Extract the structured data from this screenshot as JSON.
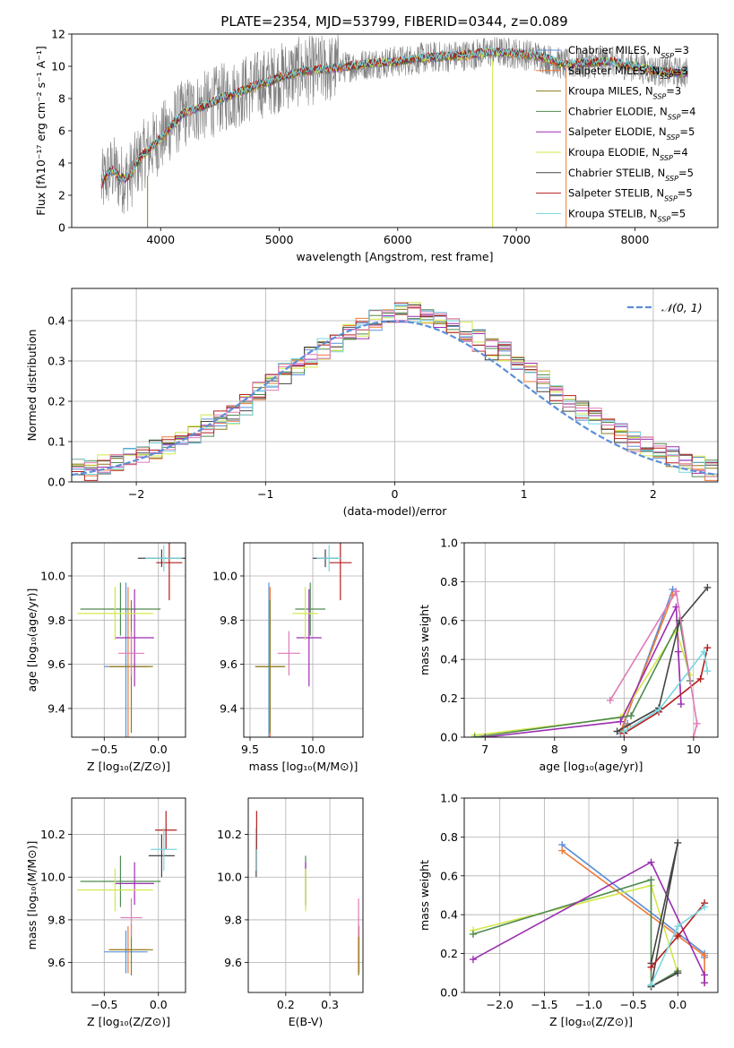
{
  "figure_title": "PLATE=2354, MJD=53799, FIBERID=0344, z=0.089",
  "colors": {
    "data": "#808080",
    "chabrier_miles": "#5b8fd6",
    "salpeter_miles": "#ef7a37",
    "kroupa_miles": "#8a7d1e",
    "chabrier_elodie": "#4f8a4f",
    "salpeter_elodie": "#9b2fb0",
    "kroupa_elodie": "#d2e84a",
    "chabrier_stelib": "#444444",
    "salpeter_stelib": "#b41e1e",
    "kroupa_stelib": "#77d7e0",
    "pink": "#e07ab8",
    "normal": "#5b8fd6"
  },
  "chart_data": [
    {
      "id": "spectrum",
      "type": "line",
      "title": "PLATE=2354, MJD=53799, FIBERID=0344, z=0.089",
      "xlabel": "wavelength [Angstrom, rest frame]",
      "ylabel": "Flux [fλ10⁻¹⁷ erg cm⁻² s⁻¹ A⁻¹]",
      "xlim": [
        3250,
        8700
      ],
      "ylim": [
        0,
        12
      ],
      "xticks": [
        4000,
        5000,
        6000,
        7000,
        8000
      ],
      "yticks": [
        0,
        2,
        4,
        6,
        8,
        10,
        12
      ],
      "legend_position": "top-right",
      "legend": [
        "Chabrier MILES, N_SSP=3",
        "Salpeter MILES, N_SSP=3",
        "Kroupa MILES, N_SSP=3",
        "Chabrier ELODIE, N_SSP=4",
        "Salpeter ELODIE, N_SSP=5",
        "Kroupa ELODIE, N_SSP=4",
        "Chabrier STELIB, N_SSP=5",
        "Salpeter STELIB, N_SSP=5",
        "Kroupa STELIB, N_SSP=5"
      ],
      "model_curve": {
        "x": [
          3500,
          3550,
          3600,
          3650,
          3700,
          3750,
          3800,
          3850,
          3900,
          3950,
          4000,
          4100,
          4200,
          4300,
          4400,
          4500,
          4600,
          4700,
          4800,
          4900,
          5000,
          5200,
          5400,
          5600,
          5800,
          6000,
          6200,
          6400,
          6600,
          6800,
          7000,
          7200,
          7400,
          7600,
          7800,
          8000,
          8200,
          8400
        ],
        "y": [
          2.6,
          3.3,
          3.6,
          3.1,
          3.0,
          3.3,
          4.0,
          4.5,
          4.8,
          5.2,
          5.5,
          6.4,
          7.1,
          7.4,
          7.6,
          8.0,
          8.2,
          8.5,
          8.8,
          9.0,
          9.3,
          9.7,
          9.8,
          10.0,
          10.2,
          10.3,
          10.5,
          10.6,
          10.7,
          10.9,
          10.8,
          10.6,
          10.1,
          10.2,
          10.3,
          10.0,
          9.7,
          9.6
        ]
      },
      "data_noise_amplitude": 2.2
    },
    {
      "id": "residuals",
      "type": "bar",
      "xlabel": "(data-model)/error",
      "ylabel": "Normed distribution",
      "xlim": [
        -2.5,
        2.5
      ],
      "ylim": [
        0,
        0.48
      ],
      "xticks": [
        -2,
        -1,
        0,
        1,
        2
      ],
      "yticks": [
        0.0,
        0.1,
        0.2,
        0.3,
        0.4
      ],
      "legend_position": "top-right",
      "legend": [
        "𝒩(0, 1)"
      ],
      "bin_width": 0.1,
      "bin_start": -2.5,
      "series_values": [
        0.03,
        0.03,
        0.04,
        0.05,
        0.06,
        0.07,
        0.08,
        0.09,
        0.11,
        0.12,
        0.14,
        0.15,
        0.17,
        0.19,
        0.22,
        0.24,
        0.27,
        0.29,
        0.31,
        0.33,
        0.35,
        0.37,
        0.38,
        0.4,
        0.41,
        0.42,
        0.42,
        0.41,
        0.4,
        0.38,
        0.37,
        0.35,
        0.33,
        0.32,
        0.29,
        0.27,
        0.25,
        0.22,
        0.2,
        0.18,
        0.16,
        0.14,
        0.12,
        0.1,
        0.09,
        0.07,
        0.06,
        0.05,
        0.04,
        0.03
      ]
    },
    {
      "id": "age_vs_Z",
      "type": "scatter",
      "xlabel": "Z [log₁₀(Z/Z⊙)]",
      "ylabel": "age  [log₁₀(age/yr)]",
      "xlim": [
        -0.8,
        0.25
      ],
      "ylim": [
        9.27,
        10.15
      ],
      "xticks": [
        -0.5,
        0.0
      ],
      "yticks": [
        9.4,
        9.6,
        9.8,
        10.0
      ],
      "points": [
        {
          "x": -0.3,
          "y": 9.59,
          "xerr": 0.2,
          "yerr": 0.38,
          "color": "chabrier_miles"
        },
        {
          "x": -0.28,
          "y": 9.59,
          "xerr": 0.18,
          "yerr": 0.36,
          "color": "salpeter_miles"
        },
        {
          "x": -0.25,
          "y": 9.59,
          "xerr": 0.2,
          "yerr": 0.3,
          "color": "kroupa_miles"
        },
        {
          "x": -0.35,
          "y": 9.85,
          "xerr": 0.37,
          "yerr": 0.12,
          "color": "chabrier_elodie"
        },
        {
          "x": -0.22,
          "y": 9.72,
          "xerr": 0.18,
          "yerr": 0.22,
          "color": "salpeter_elodie"
        },
        {
          "x": -0.4,
          "y": 9.83,
          "xerr": 0.35,
          "yerr": 0.12,
          "color": "kroupa_elodie"
        },
        {
          "x": 0.03,
          "y": 10.08,
          "xerr": 0.22,
          "yerr": 0.04,
          "color": "chabrier_stelib"
        },
        {
          "x": 0.1,
          "y": 10.06,
          "xerr": 0.12,
          "yerr": 0.17,
          "color": "salpeter_stelib"
        },
        {
          "x": 0.05,
          "y": 10.08,
          "xerr": 0.17,
          "yerr": 0.06,
          "color": "kroupa_stelib"
        },
        {
          "x": -0.25,
          "y": 9.65,
          "xerr": 0.12,
          "yerr": 0.1,
          "color": "pink"
        }
      ]
    },
    {
      "id": "age_vs_mass",
      "type": "scatter",
      "xlabel": "mass [log₁₀(M/M⊙)]",
      "ylabel": "",
      "xlim": [
        9.45,
        10.4
      ],
      "ylim": [
        9.27,
        10.15
      ],
      "xticks": [
        9.5,
        10.0
      ],
      "yticks": [
        9.4,
        9.6,
        9.8,
        10.0
      ],
      "points": [
        {
          "x": 9.65,
          "y": 9.59,
          "xerr": 0.1,
          "yerr": 0.38,
          "color": "chabrier_miles"
        },
        {
          "x": 9.66,
          "y": 9.59,
          "xerr": 0.11,
          "yerr": 0.36,
          "color": "salpeter_miles"
        },
        {
          "x": 9.66,
          "y": 9.59,
          "xerr": 0.12,
          "yerr": 0.3,
          "color": "kroupa_miles"
        },
        {
          "x": 9.98,
          "y": 9.85,
          "xerr": 0.12,
          "yerr": 0.12,
          "color": "chabrier_elodie"
        },
        {
          "x": 9.97,
          "y": 9.72,
          "xerr": 0.1,
          "yerr": 0.22,
          "color": "salpeter_elodie"
        },
        {
          "x": 9.94,
          "y": 9.83,
          "xerr": 0.1,
          "yerr": 0.12,
          "color": "kroupa_elodie"
        },
        {
          "x": 10.1,
          "y": 10.08,
          "xerr": 0.1,
          "yerr": 0.04,
          "color": "chabrier_stelib"
        },
        {
          "x": 10.22,
          "y": 10.06,
          "xerr": 0.09,
          "yerr": 0.17,
          "color": "salpeter_stelib"
        },
        {
          "x": 10.13,
          "y": 10.08,
          "xerr": 0.1,
          "yerr": 0.06,
          "color": "kroupa_stelib"
        },
        {
          "x": 9.81,
          "y": 9.65,
          "xerr": 0.09,
          "yerr": 0.1,
          "color": "pink"
        }
      ]
    },
    {
      "id": "weight_vs_age",
      "type": "line",
      "xlabel": "age  [log₁₀(age/yr)]",
      "ylabel": "mass weight",
      "xlim": [
        6.7,
        10.35
      ],
      "ylim": [
        0,
        1.0
      ],
      "xticks": [
        7,
        8,
        9,
        10
      ],
      "yticks": [
        0.0,
        0.2,
        0.4,
        0.6,
        0.8,
        1.0
      ],
      "series": [
        {
          "color": "chabrier_miles",
          "x": [
            9.05,
            8.95,
            9.7
          ],
          "y": [
            0.07,
            0.02,
            0.76
          ]
        },
        {
          "color": "salpeter_miles",
          "x": [
            9.05,
            8.95,
            9.7
          ],
          "y": [
            0.06,
            0.03,
            0.73
          ]
        },
        {
          "color": "kroupa_elodie",
          "x": [
            6.85,
            8.95,
            9.75,
            9.95
          ],
          "y": [
            0.01,
            0.1,
            0.55,
            0.32
          ]
        },
        {
          "color": "chabrier_elodie",
          "x": [
            6.85,
            9.1,
            9.8,
            9.95
          ],
          "y": [
            0.0,
            0.11,
            0.6,
            0.29
          ]
        },
        {
          "color": "salpeter_elodie",
          "x": [
            7.0,
            8.95,
            9.75,
            9.82,
            9.78
          ],
          "y": [
            0.0,
            0.08,
            0.67,
            0.17,
            0.44
          ]
        },
        {
          "color": "chabrier_stelib",
          "x": [
            8.9,
            9.5,
            9.8,
            10.2
          ],
          "y": [
            0.03,
            0.15,
            0.6,
            0.77
          ]
        },
        {
          "color": "salpeter_stelib",
          "x": [
            9.0,
            9.5,
            10.1,
            10.2
          ],
          "y": [
            0.02,
            0.13,
            0.3,
            0.46
          ]
        },
        {
          "color": "kroupa_stelib",
          "x": [
            9.0,
            9.5,
            10.15,
            10.2
          ],
          "y": [
            0.03,
            0.14,
            0.44,
            0.34
          ]
        },
        {
          "color": "pink",
          "x": [
            8.8,
            9.75,
            10.05,
            10.0
          ],
          "y": [
            0.19,
            0.75,
            0.07,
            0.0
          ]
        }
      ]
    },
    {
      "id": "mass_vs_Z",
      "type": "scatter",
      "xlabel": "Z [log₁₀(Z/Z⊙)]",
      "ylabel": "mass [log₁₀(M/M⊙)]",
      "xlim": [
        -0.8,
        0.25
      ],
      "ylim": [
        9.46,
        10.37
      ],
      "xticks": [
        -0.5,
        0.0
      ],
      "yticks": [
        9.6,
        9.8,
        10.0,
        10.2
      ],
      "points": [
        {
          "x": -0.3,
          "y": 9.65,
          "xerr": 0.2,
          "yerr": 0.1,
          "color": "chabrier_miles"
        },
        {
          "x": -0.28,
          "y": 9.66,
          "xerr": 0.18,
          "yerr": 0.11,
          "color": "salpeter_miles"
        },
        {
          "x": -0.25,
          "y": 9.66,
          "xerr": 0.2,
          "yerr": 0.12,
          "color": "kroupa_miles"
        },
        {
          "x": -0.35,
          "y": 9.98,
          "xerr": 0.37,
          "yerr": 0.12,
          "color": "chabrier_elodie"
        },
        {
          "x": -0.22,
          "y": 9.97,
          "xerr": 0.18,
          "yerr": 0.1,
          "color": "salpeter_elodie"
        },
        {
          "x": -0.4,
          "y": 9.94,
          "xerr": 0.35,
          "yerr": 0.1,
          "color": "kroupa_elodie"
        },
        {
          "x": 0.03,
          "y": 10.1,
          "xerr": 0.12,
          "yerr": 0.1,
          "color": "chabrier_stelib"
        },
        {
          "x": 0.07,
          "y": 10.22,
          "xerr": 0.1,
          "yerr": 0.09,
          "color": "salpeter_stelib"
        },
        {
          "x": 0.05,
          "y": 10.13,
          "xerr": 0.12,
          "yerr": 0.1,
          "color": "kroupa_stelib"
        },
        {
          "x": -0.25,
          "y": 9.81,
          "xerr": 0.1,
          "yerr": 0.09,
          "color": "pink"
        }
      ]
    },
    {
      "id": "mass_vs_ebv",
      "type": "scatter",
      "xlabel": "E(B-V)",
      "ylabel": "",
      "xlim": [
        0.115,
        0.375
      ],
      "ylim": [
        9.46,
        10.37
      ],
      "xticks": [
        0.2,
        0.3
      ],
      "yticks": [
        9.6,
        9.8,
        10.0,
        10.2
      ],
      "points": [
        {
          "x": 0.365,
          "y": 9.65,
          "yerr": 0.1,
          "color": "chabrier_miles"
        },
        {
          "x": 0.366,
          "y": 9.66,
          "yerr": 0.11,
          "color": "salpeter_miles"
        },
        {
          "x": 0.365,
          "y": 9.66,
          "yerr": 0.12,
          "color": "kroupa_miles"
        },
        {
          "x": 0.245,
          "y": 9.98,
          "yerr": 0.12,
          "color": "chabrier_elodie"
        },
        {
          "x": 0.245,
          "y": 9.97,
          "yerr": 0.1,
          "color": "salpeter_elodie"
        },
        {
          "x": 0.245,
          "y": 9.94,
          "yerr": 0.1,
          "color": "kroupa_elodie"
        },
        {
          "x": 0.133,
          "y": 10.1,
          "yerr": 0.1,
          "color": "chabrier_stelib"
        },
        {
          "x": 0.134,
          "y": 10.22,
          "yerr": 0.09,
          "color": "salpeter_stelib"
        },
        {
          "x": 0.132,
          "y": 10.13,
          "yerr": 0.1,
          "color": "kroupa_stelib"
        },
        {
          "x": 0.365,
          "y": 9.81,
          "yerr": 0.09,
          "color": "pink"
        }
      ]
    },
    {
      "id": "weight_vs_Z",
      "type": "line",
      "xlabel": "Z [log₁₀(Z/Z⊙)]",
      "ylabel": "mass weight",
      "xlim": [
        -2.4,
        0.45
      ],
      "ylim": [
        0,
        1.0
      ],
      "xticks": [
        -2.0,
        -1.5,
        -1.0,
        -0.5,
        0.0
      ],
      "yticks": [
        0.0,
        0.2,
        0.4,
        0.6,
        0.8,
        1.0
      ],
      "series": [
        {
          "color": "chabrier_miles",
          "x": [
            -1.3,
            0.3,
            0.3
          ],
          "y": [
            0.76,
            0.2,
            0.18
          ]
        },
        {
          "color": "salpeter_miles",
          "x": [
            -1.3,
            0.3,
            0.3
          ],
          "y": [
            0.73,
            0.19,
            0.05
          ]
        },
        {
          "color": "kroupa_elodie",
          "x": [
            -2.3,
            -0.3,
            0.0
          ],
          "y": [
            0.32,
            0.55,
            0.1
          ]
        },
        {
          "color": "chabrier_elodie",
          "x": [
            -2.3,
            -0.3,
            -0.3,
            0.0
          ],
          "y": [
            0.3,
            0.58,
            0.03,
            0.11
          ]
        },
        {
          "color": "salpeter_elodie",
          "x": [
            -2.3,
            -0.3,
            0.3,
            0.3
          ],
          "y": [
            0.17,
            0.67,
            0.09,
            0.05
          ]
        },
        {
          "color": "chabrier_stelib",
          "x": [
            -0.3,
            0.0,
            -0.3,
            0.0
          ],
          "y": [
            0.15,
            0.77,
            0.03,
            0.1
          ]
        },
        {
          "color": "salpeter_stelib",
          "x": [
            -0.3,
            0.0,
            0.3
          ],
          "y": [
            0.13,
            0.29,
            0.46
          ]
        },
        {
          "color": "kroupa_stelib",
          "x": [
            -0.3,
            0.0,
            0.3
          ],
          "y": [
            0.04,
            0.34,
            0.44
          ]
        }
      ]
    }
  ]
}
